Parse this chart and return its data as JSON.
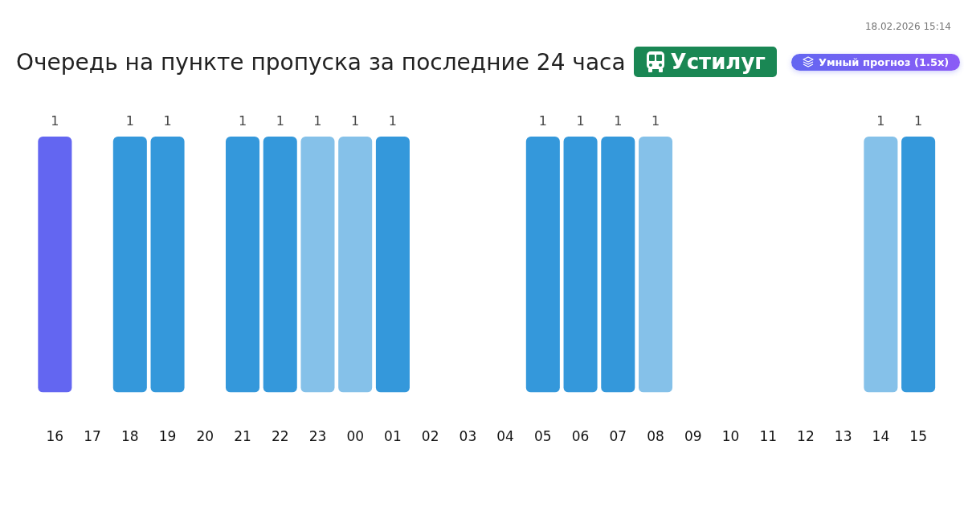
{
  "chart_data": {
    "type": "bar",
    "title": "Очередь на пункте пропуска за последние 24 часа",
    "subtitle": "Устилуг",
    "annotations": [
      "18.02.2026 15:14",
      "Умный прогноз (1.5x)"
    ],
    "categories": [
      "16",
      "17",
      "18",
      "19",
      "20",
      "21",
      "22",
      "23",
      "00",
      "01",
      "02",
      "03",
      "04",
      "05",
      "06",
      "07",
      "08",
      "09",
      "10",
      "11",
      "12",
      "13",
      "14",
      "15"
    ],
    "values": [
      1,
      null,
      1,
      1,
      null,
      1,
      1,
      1,
      1,
      1,
      null,
      null,
      null,
      1,
      1,
      1,
      1,
      null,
      null,
      null,
      null,
      null,
      1,
      1
    ],
    "colors": [
      "#6366f1",
      "#3498db",
      "#3498db",
      "#3498db",
      "#3498db",
      "#3498db",
      "#3498db",
      "#85c1e9",
      "#85c1e9",
      "#3498db",
      "#3498db",
      "#3498db",
      "#3498db",
      "#3498db",
      "#3498db",
      "#3498db",
      "#85c1e9",
      "#3498db",
      "#3498db",
      "#3498db",
      "#3498db",
      "#3498db",
      "#85c1e9",
      "#3498db"
    ],
    "data_labels": true,
    "grid": false,
    "legend": false
  }
}
